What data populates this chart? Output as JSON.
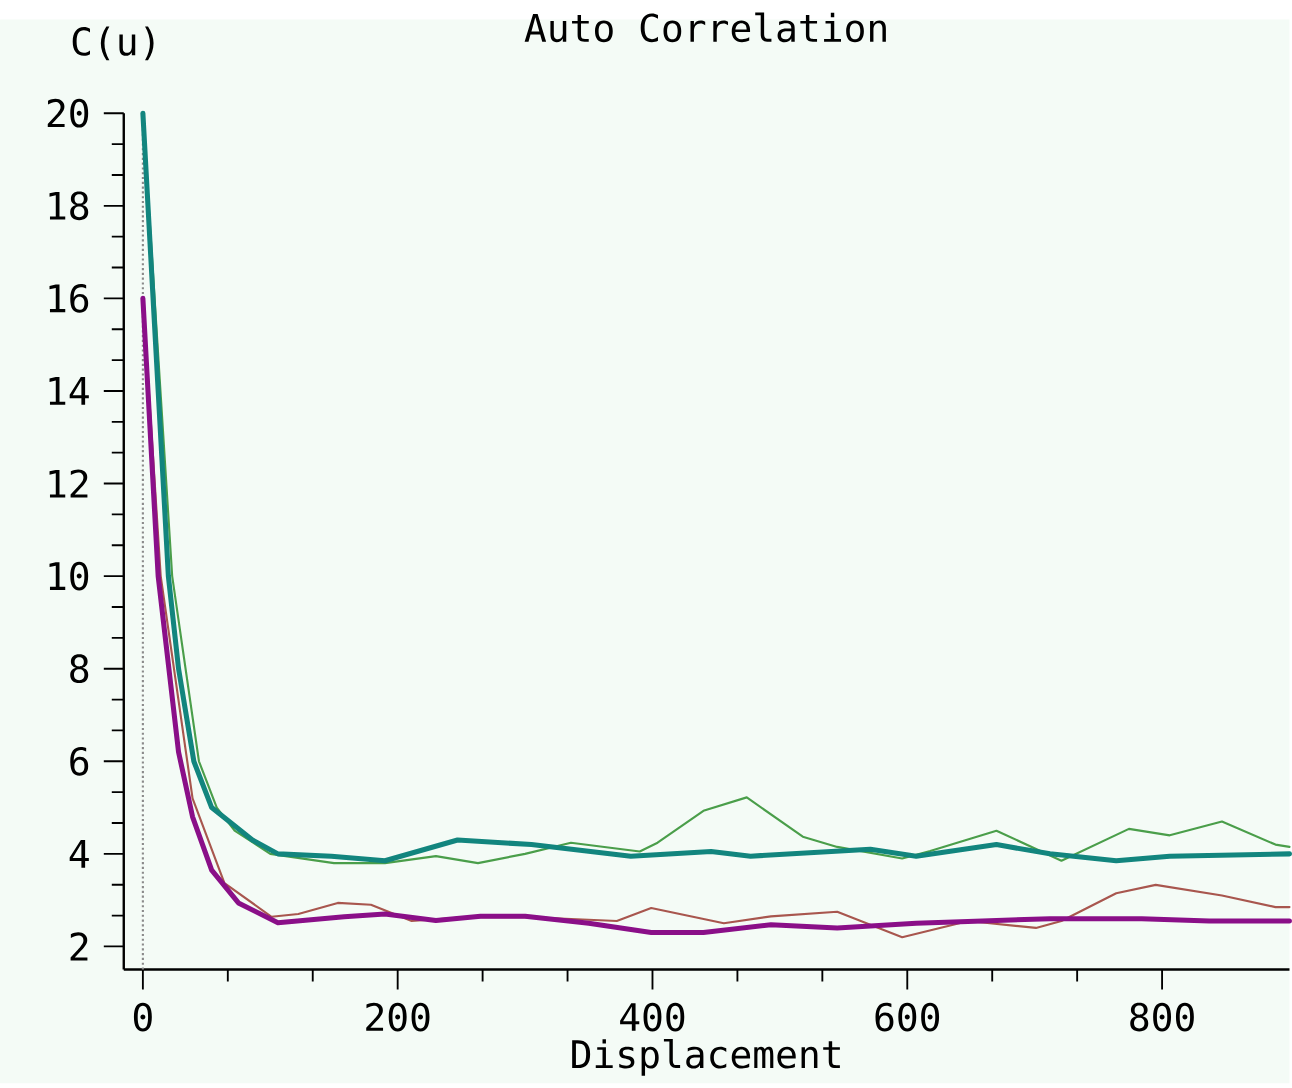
{
  "chart_data": {
    "type": "line",
    "title": "Auto Correlation",
    "xlabel": "Displacement",
    "ylabel": "C(u)",
    "xlim": [
      -15,
      900
    ],
    "ylim": [
      1.5,
      20
    ],
    "xticks": [
      0,
      200,
      400,
      600,
      800
    ],
    "yticks": [
      2,
      4,
      6,
      8,
      10,
      12,
      14,
      16,
      18,
      20
    ],
    "ref_lines": [
      {
        "axis": "x",
        "value": 0,
        "color": "#8a8a8a",
        "line_style": "dotted"
      }
    ],
    "series": [
      {
        "color": "#4a9e4a",
        "x": [
          0,
          23,
          44,
          58,
          72,
          100,
          150,
          190,
          230,
          263,
          300,
          336,
          390,
          404,
          440,
          474,
          518,
          545,
          596,
          618,
          670,
          721,
          774,
          806,
          847,
          889,
          900
        ],
        "values": [
          20,
          10,
          6,
          5,
          4.5,
          4.0,
          3.8,
          3.8,
          3.95,
          3.8,
          4.0,
          4.24,
          4.05,
          4.24,
          4.93,
          5.22,
          4.37,
          4.15,
          3.9,
          4.06,
          4.5,
          3.85,
          4.54,
          4.4,
          4.7,
          4.2,
          4.15
        ]
      },
      {
        "color": "#12857e",
        "x": [
          0,
          20,
          28,
          40,
          54,
          86,
          106,
          148,
          190,
          247,
          305,
          383,
          446,
          477,
          571,
          607,
          670,
          712,
          764,
          806,
          900
        ],
        "values": [
          20,
          10,
          8,
          6,
          5,
          4.3,
          4.0,
          3.95,
          3.85,
          4.3,
          4.2,
          3.95,
          4.05,
          3.95,
          4.1,
          3.95,
          4.2,
          4.0,
          3.85,
          3.95,
          4.0
        ]
      },
      {
        "color": "#a8564e",
        "x": [
          0,
          14,
          39,
          64,
          101,
          122,
          153,
          179,
          211,
          252,
          305,
          372,
          399,
          456,
          493,
          545,
          596,
          648,
          701,
          721,
          764,
          795,
          847,
          889,
          900
        ],
        "values": [
          16,
          10,
          5.2,
          3.37,
          2.64,
          2.7,
          2.94,
          2.9,
          2.55,
          2.63,
          2.63,
          2.55,
          2.83,
          2.5,
          2.65,
          2.75,
          2.2,
          2.55,
          2.4,
          2.55,
          3.15,
          3.33,
          3.1,
          2.85,
          2.85
        ]
      },
      {
        "color": "#8a0f88",
        "x": [
          0,
          12,
          28,
          39,
          54,
          75,
          106,
          158,
          190,
          230,
          265,
          300,
          350,
          399,
          440,
          493,
          545,
          607,
          659,
          712,
          784,
          837,
          900
        ],
        "values": [
          16,
          10,
          6.2,
          4.8,
          3.65,
          2.94,
          2.51,
          2.64,
          2.7,
          2.56,
          2.65,
          2.65,
          2.5,
          2.3,
          2.3,
          2.47,
          2.4,
          2.5,
          2.55,
          2.6,
          2.6,
          2.55,
          2.55
        ]
      }
    ]
  }
}
